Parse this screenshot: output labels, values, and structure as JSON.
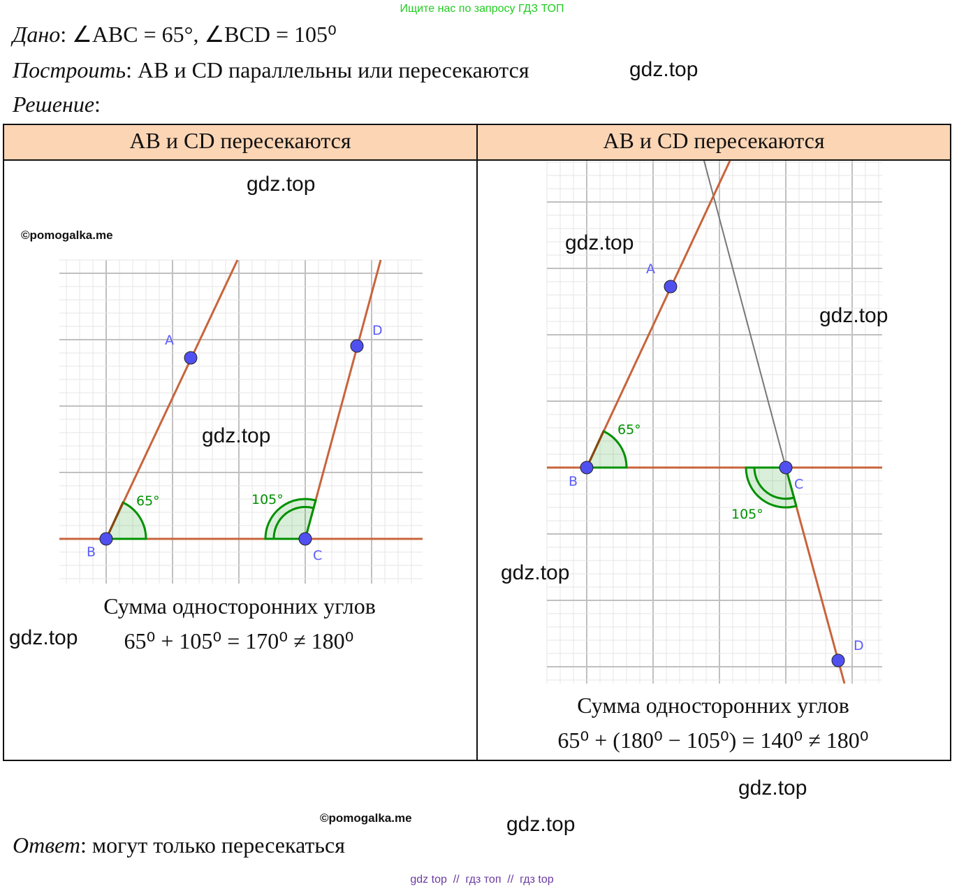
{
  "header_note": "Ищите нас по запросу ГДЗ ТОП",
  "given": {
    "label": "Дано",
    "text": ": ∠ABC = 65°, ∠BCD = 105⁰"
  },
  "construct": {
    "label": "Построить",
    "text": ": AB и CD параллельны или пересекаются"
  },
  "solution": {
    "label": "Решение",
    "text": ":"
  },
  "table": {
    "headers": [
      "AB и CD пересекаются",
      "AB и CD пересекаются"
    ],
    "left": {
      "points": [
        "A",
        "B",
        "C",
        "D"
      ],
      "angles": [
        "65°",
        "105°"
      ],
      "caption": "Сумма односторонних углов",
      "formula": "65⁰ + 105⁰ = 170⁰ ≠ 180⁰"
    },
    "right": {
      "points": [
        "A",
        "B",
        "C",
        "D"
      ],
      "angles": [
        "65°",
        "105°"
      ],
      "caption": "Сумма односторонних углов",
      "formula": "65⁰ + (180⁰ − 105⁰) = 140⁰ ≠ 180⁰"
    }
  },
  "answer": {
    "label": "Ответ",
    "text": ": могут только пересекаться"
  },
  "watermarks": [
    "gdz.top",
    "gdz.top",
    "gdz.top",
    "gdz.top",
    "gdz.top",
    "gdz.top",
    "gdz.top",
    "gdz.top",
    "gdz.top"
  ],
  "copyrights": [
    "©pomogalka.me",
    "©pomogalka.me"
  ],
  "footer": "gdz top  //  гдз топ  //  гдз top"
}
